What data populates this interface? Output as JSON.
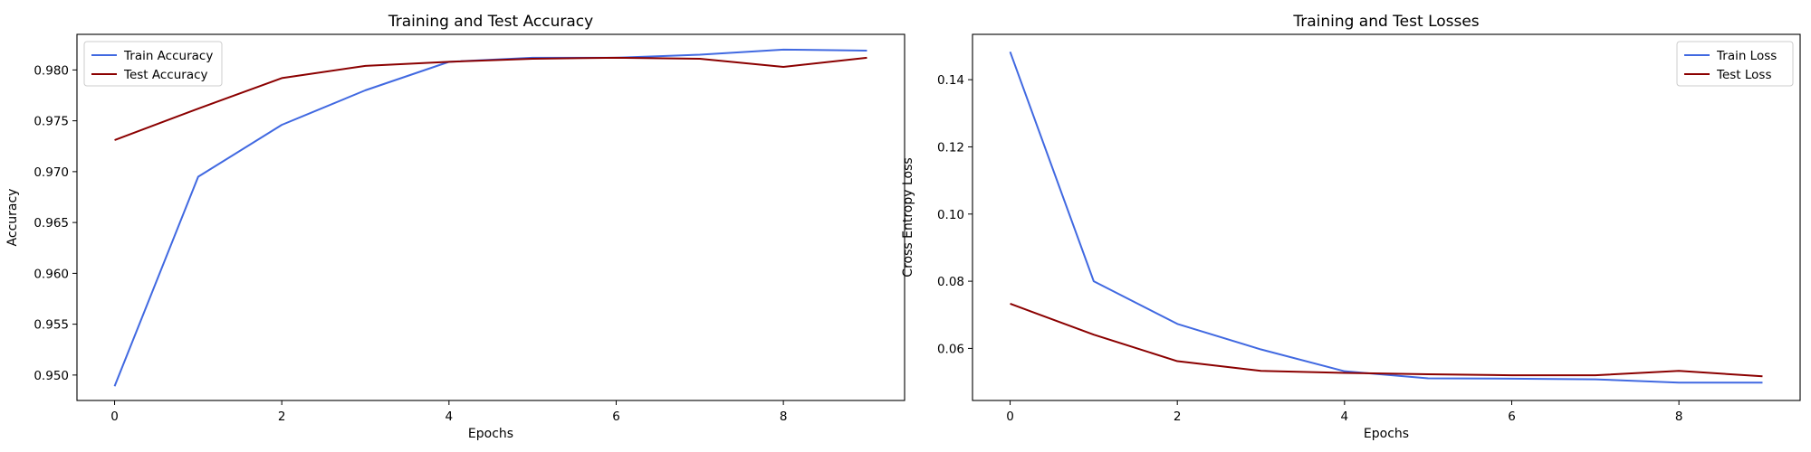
{
  "chart_data": [
    {
      "type": "line",
      "title": "Training and Test Accuracy",
      "xlabel": "Epochs",
      "ylabel": "Accuracy",
      "xlim": [
        -0.45,
        9.45
      ],
      "ylim": [
        0.9475,
        0.9835
      ],
      "xticks": [
        0,
        2,
        4,
        6,
        8
      ],
      "yticks": [
        0.95,
        0.955,
        0.96,
        0.965,
        0.97,
        0.975,
        0.98
      ],
      "ytick_labels": [
        "0.950",
        "0.955",
        "0.960",
        "0.965",
        "0.970",
        "0.975",
        "0.980"
      ],
      "legend_position": "top-left",
      "grid": false,
      "x": [
        0,
        1,
        2,
        3,
        4,
        5,
        6,
        7,
        8,
        9
      ],
      "series": [
        {
          "name": "Train Accuracy",
          "color": "#4169e1",
          "values": [
            0.9489,
            0.9695,
            0.9746,
            0.978,
            0.9808,
            0.9812,
            0.9812,
            0.9815,
            0.982,
            0.9819
          ]
        },
        {
          "name": "Test Accuracy",
          "color": "#8b0000",
          "values": [
            0.9731,
            0.9762,
            0.9792,
            0.9804,
            0.9808,
            0.9811,
            0.9812,
            0.9811,
            0.9803,
            0.9812
          ]
        }
      ]
    },
    {
      "type": "line",
      "title": "Training and Test Losses",
      "xlabel": "Epochs",
      "ylabel": "Cross Entropy Loss",
      "xlim": [
        -0.45,
        9.45
      ],
      "ylim": [
        0.0445,
        0.1535
      ],
      "xticks": [
        0,
        2,
        4,
        6,
        8
      ],
      "yticks": [
        0.06,
        0.08,
        0.1,
        0.12,
        0.14
      ],
      "ytick_labels": [
        "0.06",
        "0.08",
        "0.10",
        "0.12",
        "0.14"
      ],
      "legend_position": "top-right",
      "grid": false,
      "x": [
        0,
        1,
        2,
        3,
        4,
        5,
        6,
        7,
        8,
        9
      ],
      "series": [
        {
          "name": "Train Loss",
          "color": "#4169e1",
          "values": [
            0.1483,
            0.08,
            0.0673,
            0.0597,
            0.0532,
            0.0511,
            0.051,
            0.0508,
            0.0498,
            0.0498
          ]
        },
        {
          "name": "Test Loss",
          "color": "#8b0000",
          "values": [
            0.0733,
            0.0641,
            0.0562,
            0.0533,
            0.0527,
            0.0523,
            0.052,
            0.052,
            0.0533,
            0.0517
          ]
        }
      ]
    }
  ]
}
